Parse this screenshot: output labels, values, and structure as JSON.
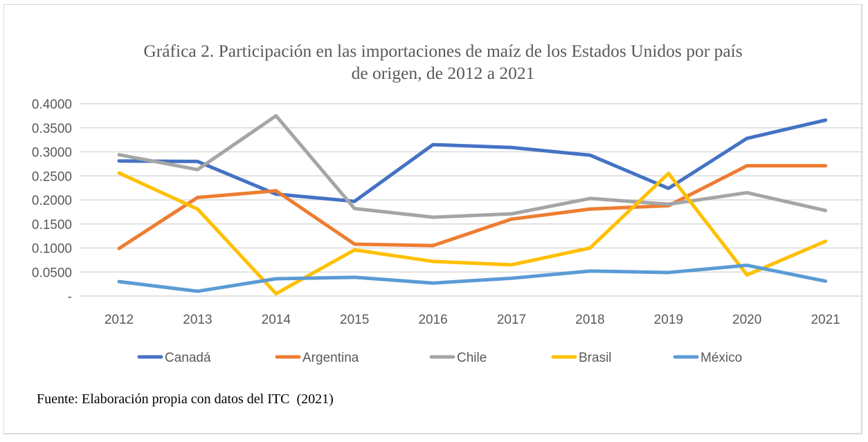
{
  "chart_data": {
    "type": "line",
    "title": "Gráfica 2. Participación en las importaciones de maíz de los Estados Unidos por país de origen, de 2012 a 2021",
    "title_lines": [
      "Gráfica 2. Participación en las importaciones de maíz de los Estados Unidos por país",
      "de origen, de 2012 a 2021"
    ],
    "xlabel": "",
    "ylabel": "",
    "categories": [
      "2012",
      "2013",
      "2014",
      "2015",
      "2016",
      "2017",
      "2018",
      "2019",
      "2020",
      "2021"
    ],
    "ylim": [
      0,
      0.4
    ],
    "yticks": [
      0,
      0.05,
      0.1,
      0.15,
      0.2,
      0.25,
      0.3,
      0.35,
      0.4
    ],
    "ytick_labels": [
      "-",
      "0.0500",
      "0.1000",
      "0.1500",
      "0.2000",
      "0.2500",
      "0.3000",
      "0.3500",
      "0.4000"
    ],
    "grid": true,
    "legend_position": "bottom",
    "series": [
      {
        "name": "Canadá",
        "color": "#4472C4",
        "values": [
          0.281,
          0.28,
          0.212,
          0.197,
          0.315,
          0.309,
          0.293,
          0.224,
          0.328,
          0.366
        ]
      },
      {
        "name": "Argentina",
        "color": "#ED7D31",
        "values": [
          0.099,
          0.205,
          0.219,
          0.108,
          0.105,
          0.16,
          0.181,
          0.188,
          0.271,
          0.271
        ]
      },
      {
        "name": "Chile",
        "color": "#A5A5A5",
        "values": [
          0.294,
          0.263,
          0.375,
          0.182,
          0.164,
          0.171,
          0.203,
          0.191,
          0.215,
          0.178
        ]
      },
      {
        "name": "Brasil",
        "color": "#FFC000",
        "values": [
          0.256,
          0.181,
          0.005,
          0.096,
          0.072,
          0.065,
          0.1,
          0.255,
          0.044,
          0.114
        ]
      },
      {
        "name": "México",
        "color": "#5B9BD5",
        "values": [
          0.03,
          0.01,
          0.036,
          0.039,
          0.027,
          0.037,
          0.052,
          0.049,
          0.064,
          0.031
        ]
      }
    ]
  },
  "source_note": "Fuente: Elaboración propia con datos del ITC  (2021)"
}
